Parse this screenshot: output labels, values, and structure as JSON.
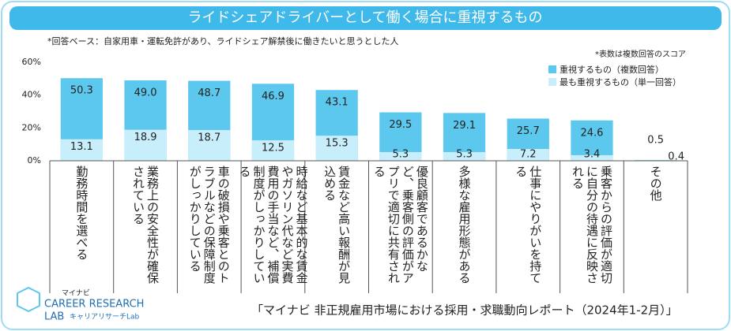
{
  "chart_data": {
    "type": "overlap-bar",
    "title": "ライドシェアドライバーとして働く場合に重視するもの",
    "subtitle": "*回答ベース：自家用車・運転免許があり、ライドシェア解禁後に働きたいと思うとした人",
    "note": "*表数は複数回答のスコア",
    "categories": [
      "勤務時間を選べる",
      "業務上の安全性が確保されている",
      "車の破損や乗客とのトラブルなどの保障制度がしっかりしている",
      "時給など基本的な賃金やガソリン代など実費費用の手当など、補償制度がしっかりしている",
      "賃金など高い報酬が見込める",
      "優良顧客であるかなど、乗客側の評価がアプリで適切に共有される",
      "多様な雇用形態がある",
      "仕事にやりがいを持てる",
      "乗客からの評価が適切に自分の待遇に反映される",
      "その他"
    ],
    "series": [
      {
        "name": "重視するもの（複数回答）",
        "color": "#5cc8ee",
        "values": [
          50.3,
          49.0,
          48.7,
          46.9,
          43.1,
          29.5,
          29.1,
          25.7,
          24.6,
          0.5
        ],
        "value_labels": [
          "50.3",
          "49.0",
          "48.7",
          "46.9",
          "43.1",
          "29.5",
          "29.1",
          "25.7",
          "24.6",
          "0.5"
        ]
      },
      {
        "name": "最も重視するもの（単一回答）",
        "color": "#c8eefb",
        "values": [
          13.1,
          18.9,
          18.7,
          12.5,
          15.3,
          5.3,
          5.3,
          7.2,
          3.4,
          0.4
        ]
      }
    ],
    "ylim": [
      0,
      60
    ],
    "yticks": [
      {
        "value": 0,
        "label": "0%"
      },
      {
        "value": 20,
        "label": "20%"
      },
      {
        "value": 40,
        "label": "40%"
      },
      {
        "value": 60,
        "label": "60%"
      }
    ],
    "legend": "top-right",
    "source": "「マイナビ 非正規雇用市場における採用・求職動向レポート（2024年1-2月）」"
  },
  "logo": {
    "brand": "マイナビ",
    "line1": "CAREER RESEARCH",
    "line2": "LAB",
    "line3": "キャリアリサーチLab"
  }
}
